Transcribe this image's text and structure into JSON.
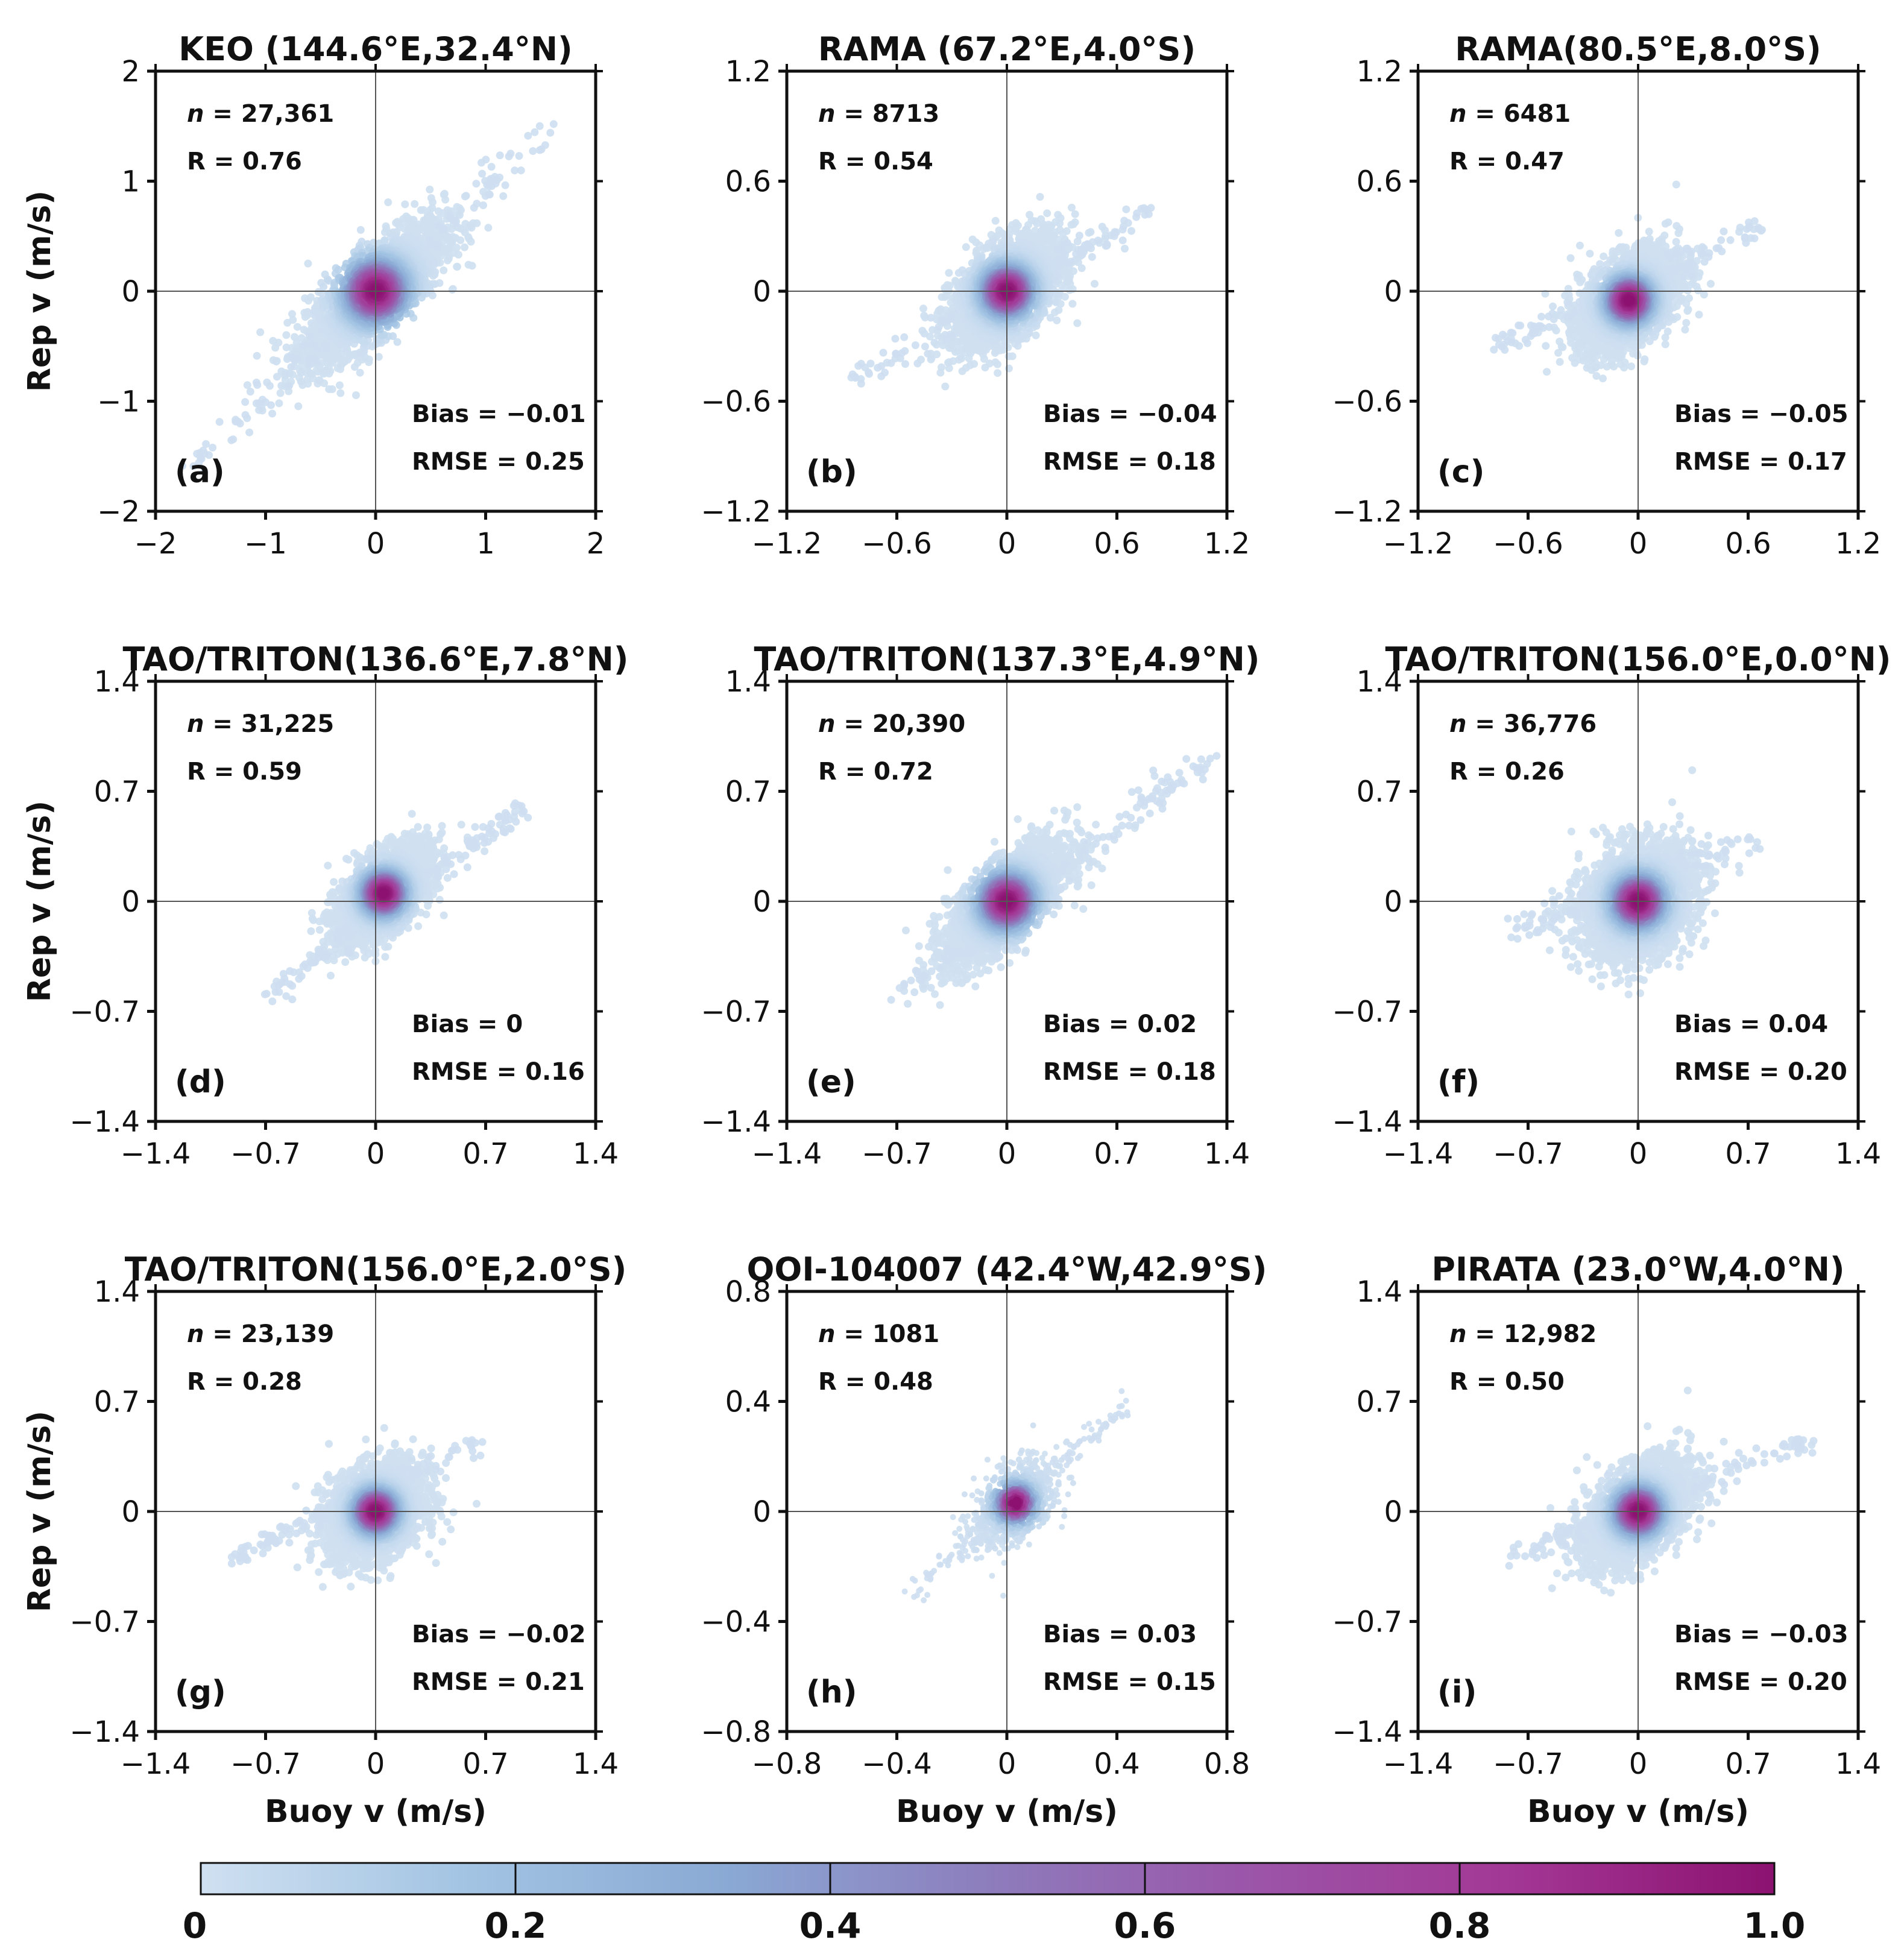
{
  "colorbar": {
    "ticks": [
      "0",
      "0.2",
      "0.4",
      "0.6",
      "0.8",
      "1.0"
    ],
    "range": [
      0,
      1
    ],
    "colors": [
      "#cfe0f1",
      "#a3c4e3",
      "#8aa9d4",
      "#8d7dbd",
      "#9b55a9",
      "#a33795",
      "#8c1270"
    ]
  },
  "chart_data": [
    {
      "type": "scatter",
      "panel": "(a)",
      "title": "KEO (144.6°E,32.4°N)",
      "xlabel": "",
      "ylabel": "Rep v (m/s)",
      "xlim": [
        -2,
        2
      ],
      "ylim": [
        -2,
        2
      ],
      "xticks": [
        "−2",
        "−1",
        "0",
        "1",
        "2"
      ],
      "yticks": [
        "−2",
        "−1",
        "0",
        "1",
        "2"
      ],
      "n": "27,361",
      "r": "R = 0.76",
      "bias": "Bias  = −0.01",
      "rmse": "RMSE = 0.25",
      "density": {
        "center": [
          0.0,
          0.0
        ],
        "spread": 0.62,
        "r": 0.76,
        "core": 0.12,
        "tail": [
          -1.7,
          -1.6,
          1.6,
          1.5
        ]
      }
    },
    {
      "type": "scatter",
      "panel": "(b)",
      "title": "RAMA (67.2°E,4.0°S)",
      "xlabel": "",
      "ylabel": "",
      "xlim": [
        -1.2,
        1.2
      ],
      "ylim": [
        -1.2,
        1.2
      ],
      "xticks": [
        "−1.2",
        "−0.6",
        "0",
        "0.6",
        "1.2"
      ],
      "yticks": [
        "−1.2",
        "−0.6",
        "0",
        "0.6",
        "1.2"
      ],
      "n": "8713",
      "r": "R = 0.54",
      "bias": "Bias  = −0.04",
      "rmse": "RMSE = 0.18",
      "density": {
        "center": [
          0.0,
          0.0
        ],
        "spread": 0.3,
        "r": 0.54,
        "core": 0.06,
        "tail": [
          -0.85,
          -0.5,
          0.8,
          0.45
        ]
      }
    },
    {
      "type": "scatter",
      "panel": "(c)",
      "title": "RAMA(80.5°E,8.0°S)",
      "xlabel": "",
      "ylabel": "",
      "xlim": [
        -1.2,
        1.2
      ],
      "ylim": [
        -1.2,
        1.2
      ],
      "xticks": [
        "−1.2",
        "−0.6",
        "0",
        "0.6",
        "1.2"
      ],
      "yticks": [
        "−1.2",
        "−0.6",
        "0",
        "0.6",
        "1.2"
      ],
      "n": "6481",
      "r": "R = 0.47",
      "bias": "Bias  = −0.05",
      "rmse": "RMSE = 0.17",
      "density": {
        "center": [
          -0.05,
          -0.05
        ],
        "spread": 0.27,
        "r": 0.47,
        "core": 0.06,
        "tail": [
          -0.75,
          -0.3,
          0.65,
          0.35
        ]
      }
    },
    {
      "type": "scatter",
      "panel": "(d)",
      "title": "TAO/TRITON(136.6°E,7.8°N)",
      "xlabel": "",
      "ylabel": "Rep v (m/s)",
      "xlim": [
        -1.4,
        1.4
      ],
      "ylim": [
        -1.4,
        1.4
      ],
      "xticks": [
        "−1.4",
        "−0.7",
        "0",
        "0.7",
        "1.4"
      ],
      "yticks": [
        "−1.4",
        "−0.7",
        "0",
        "0.7",
        "1.4"
      ],
      "n": "31,225",
      "r": "R = 0.59",
      "bias": "Bias  =  0",
      "rmse": "RMSE = 0.16",
      "density": {
        "center": [
          0.05,
          0.05
        ],
        "spread": 0.3,
        "r": 0.59,
        "core": 0.08,
        "tail": [
          -0.7,
          -0.6,
          0.95,
          0.6
        ]
      }
    },
    {
      "type": "scatter",
      "panel": "(e)",
      "title": "TAO/TRITON(137.3°E,4.9°N)",
      "xlabel": "",
      "ylabel": "",
      "xlim": [
        -1.4,
        1.4
      ],
      "ylim": [
        -1.4,
        1.4
      ],
      "xticks": [
        "−1.4",
        "−0.7",
        "0",
        "0.7",
        "1.4"
      ],
      "yticks": [
        "−1.4",
        "−0.7",
        "0",
        "0.7",
        "1.4"
      ],
      "n": "20,390",
      "r": "R = 0.72",
      "bias": "Bias  =  0.02",
      "rmse": "RMSE = 0.18",
      "density": {
        "center": [
          0.0,
          0.0
        ],
        "spread": 0.38,
        "r": 0.72,
        "core": 0.09,
        "tail": [
          -0.7,
          -0.6,
          1.25,
          0.9
        ]
      }
    },
    {
      "type": "scatter",
      "panel": "(f)",
      "title": "TAO/TRITON(156.0°E,0.0°N)",
      "xlabel": "",
      "ylabel": "",
      "xlim": [
        -1.4,
        1.4
      ],
      "ylim": [
        -1.4,
        1.4
      ],
      "xticks": [
        "−1.4",
        "−0.7",
        "0",
        "0.7",
        "1.4"
      ],
      "yticks": [
        "−1.4",
        "−0.7",
        "0",
        "0.7",
        "1.4"
      ],
      "n": "36,776",
      "r": "R = 0.26",
      "bias": "Bias  =  0.04",
      "rmse": "RMSE = 0.20",
      "density": {
        "center": [
          0.0,
          0.0
        ],
        "spread": 0.36,
        "r": 0.26,
        "core": 0.09,
        "tail": [
          -0.85,
          -0.2,
          0.75,
          0.4
        ]
      }
    },
    {
      "type": "scatter",
      "panel": "(g)",
      "title": "TAO/TRITON(156.0°E,2.0°S)",
      "xlabel": "Buoy v (m/s)",
      "ylabel": "Rep v (m/s)",
      "xlim": [
        -1.4,
        1.4
      ],
      "ylim": [
        -1.4,
        1.4
      ],
      "xticks": [
        "−1.4",
        "−0.7",
        "0",
        "0.7",
        "1.4"
      ],
      "yticks": [
        "−1.4",
        "−0.7",
        "0",
        "0.7",
        "1.4"
      ],
      "n": "23,139",
      "r": "R = 0.28",
      "bias": "Bias  = −0.02",
      "rmse": "RMSE = 0.21",
      "density": {
        "center": [
          0.0,
          0.0
        ],
        "spread": 0.3,
        "r": 0.28,
        "core": 0.1,
        "tail": [
          -0.9,
          -0.3,
          0.65,
          0.45
        ]
      }
    },
    {
      "type": "scatter",
      "panel": "(h)",
      "title": "OOI-104007 (42.4°W,42.9°S)",
      "xlabel": "Buoy v (m/s)",
      "ylabel": "",
      "xlim": [
        -0.8,
        0.8
      ],
      "ylim": [
        -0.8,
        0.8
      ],
      "xticks": [
        "−0.8",
        "−0.4",
        "0",
        "0.4",
        "0.8"
      ],
      "yticks": [
        "−0.8",
        "−0.4",
        "0",
        "0.4",
        "0.8"
      ],
      "n": "1081",
      "r": "R = 0.48",
      "bias": "Bias  =  0.03",
      "rmse": "RMSE = 0.15",
      "density": {
        "center": [
          0.03,
          0.03
        ],
        "spread": 0.15,
        "r": 0.48,
        "core": 0.05,
        "tail": [
          -0.35,
          -0.3,
          0.45,
          0.4
        ]
      }
    },
    {
      "type": "scatter",
      "panel": "(i)",
      "title": "PIRATA (23.0°W,4.0°N)",
      "xlabel": "Buoy v (m/s)",
      "ylabel": "",
      "xlim": [
        -1.4,
        1.4
      ],
      "ylim": [
        -1.4,
        1.4
      ],
      "xticks": [
        "−1.4",
        "−0.7",
        "0",
        "0.7",
        "1.4"
      ],
      "yticks": [
        "−1.4",
        "−0.7",
        "0",
        "0.7",
        "1.4"
      ],
      "n": "12,982",
      "r": "R = 0.50",
      "bias": "Bias  = −0.03",
      "rmse": "RMSE = 0.20",
      "density": {
        "center": [
          0.0,
          0.0
        ],
        "spread": 0.33,
        "r": 0.5,
        "core": 0.08,
        "tail": [
          -0.85,
          -0.3,
          1.1,
          0.45
        ]
      }
    }
  ]
}
